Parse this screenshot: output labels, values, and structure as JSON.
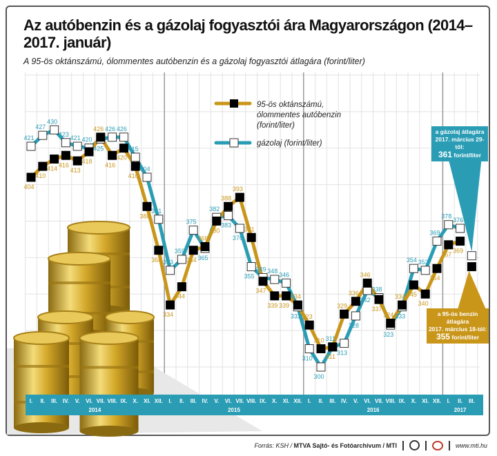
{
  "title": "Az autóbenzin és a gázolaj fogyasztói ára Magyarországon (2014–2017. január)",
  "subtitle": "A 95-ös oktánszámú, ólommentes autóbenzin és a gázolaj fogyasztói átlagára (forint/liter)",
  "colors": {
    "petrol": "#c9961a",
    "diesel": "#2a9db5",
    "axis_band": "#2a9db5"
  },
  "chart_data": {
    "type": "line",
    "ylim": [
      290,
      470
    ],
    "grid": true,
    "legend_placement": "top-center",
    "categories": [
      "I.",
      "II.",
      "III.",
      "IV.",
      "V.",
      "VI.",
      "VII.",
      "VIII.",
      "IX.",
      "X.",
      "XI.",
      "XII.",
      "I.",
      "II.",
      "III.",
      "IV.",
      "V.",
      "VI.",
      "VII.",
      "VIII.",
      "IX.",
      "X.",
      "XI.",
      "XII.",
      "I.",
      "II.",
      "III.",
      "IV.",
      "V.",
      "VI.",
      "VII.",
      "VIII.",
      "IX.",
      "X.",
      "XI.",
      "XII.",
      "I.",
      "II.",
      "III."
    ],
    "years": [
      {
        "label": "2014",
        "start": 0,
        "end": 11
      },
      {
        "label": "2015",
        "start": 12,
        "end": 23
      },
      {
        "label": "2016",
        "start": 24,
        "end": 35
      },
      {
        "label": "2017",
        "start": 36,
        "end": 38
      }
    ],
    "series": [
      {
        "name": "95-ös oktánszámú, ólommentes autóbenzin (forint/liter)",
        "color": "#c9961a",
        "marker": "filled-square",
        "values": [
          404,
          410,
          414,
          416,
          413,
          418,
          426,
          416,
          420,
          410,
          388,
          364,
          334,
          344,
          364,
          366,
          380,
          388,
          393,
          371,
          347,
          339,
          339,
          334,
          323,
          310,
          311,
          329,
          336,
          346,
          337,
          324,
          334,
          345,
          340,
          354,
          367,
          369,
          null
        ],
        "extra_point": {
          "index": 38,
          "value": 355
        }
      },
      {
        "name": "gázolaj (forint/liter)",
        "color": "#2a9db5",
        "marker": "open-square",
        "values": [
          421,
          427,
          430,
          423,
          421,
          420,
          425,
          426,
          426,
          415,
          404,
          381,
          353,
          359,
          375,
          365,
          382,
          383,
          376,
          355,
          349,
          348,
          346,
          333,
          310,
          300,
          311,
          313,
          328,
          342,
          338,
          323,
          333,
          354,
          353,
          369,
          378,
          376,
          null
        ],
        "extra_point": {
          "index": 38,
          "value": 361
        }
      }
    ],
    "annotations": {
      "diesel": {
        "line1": "a gázolaj átlagára",
        "line2": "2017. március 29-től:",
        "value": "361",
        "unit": "forint/liter"
      },
      "petrol": {
        "line1": "a 95-ös benzin átlagára",
        "line2": "2017. március 18-tól:",
        "value": "355",
        "unit": "forint/liter"
      }
    }
  },
  "legend": {
    "petrol": [
      "95-ös oktánszámú,",
      "ólommentes autóbenzin",
      "(forint/liter)"
    ],
    "diesel": "gázolaj (forint/liter)"
  },
  "footer": {
    "source_prefix": "Forrás: KSH / ",
    "source_bold": "MTVA Sajtó- és Fotóarchívum / MTI",
    "url": "www.mti.hu"
  }
}
